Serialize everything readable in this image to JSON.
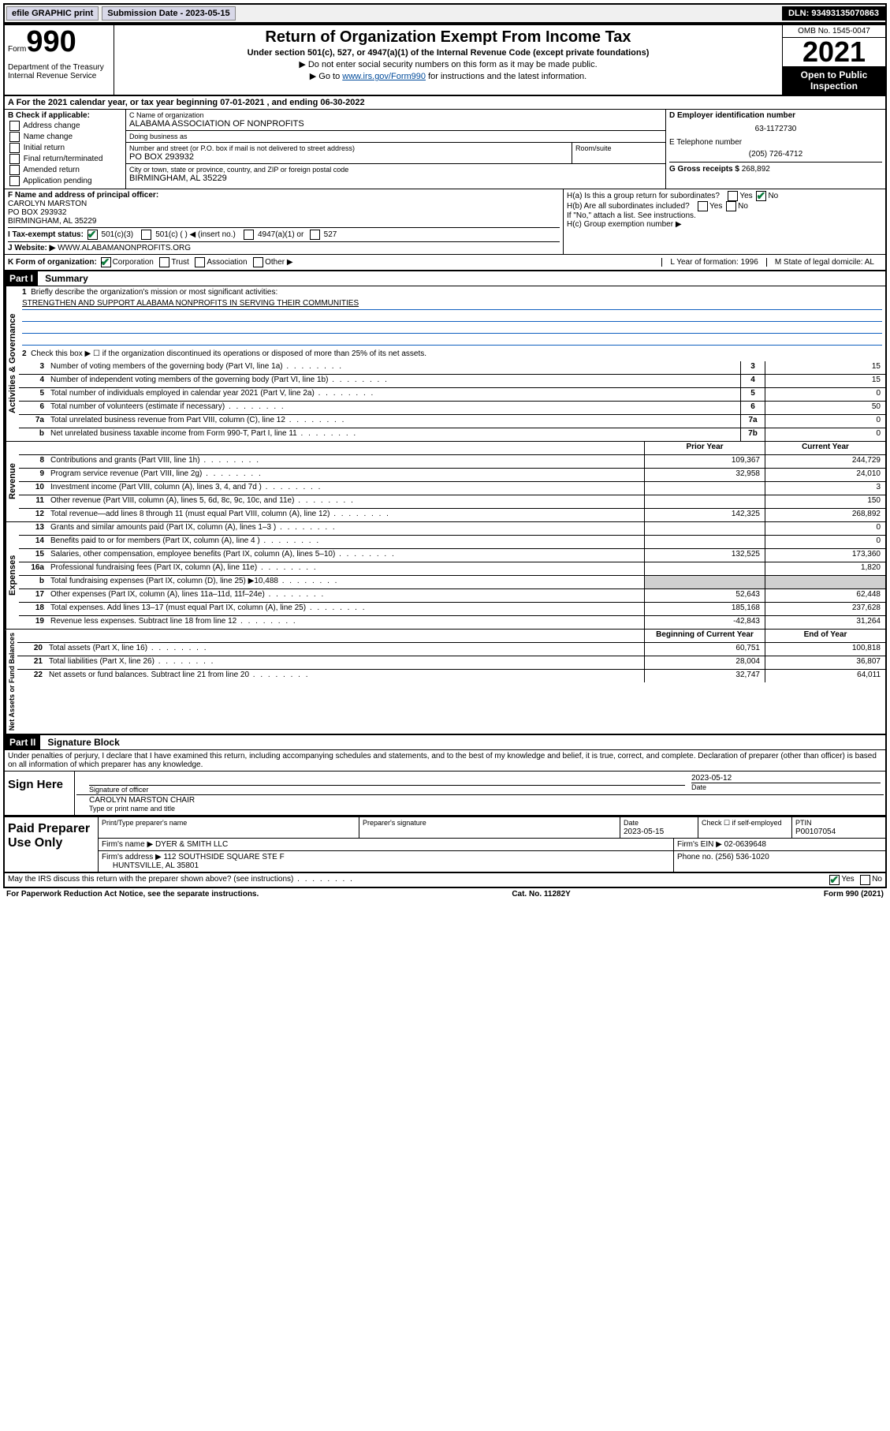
{
  "topbar": {
    "efile": "efile GRAPHIC print",
    "submission_label": "Submission Date - 2023-05-15",
    "dln": "DLN: 93493135070863"
  },
  "header": {
    "form_word": "Form",
    "form_num": "990",
    "dept": "Department of the Treasury\nInternal Revenue Service",
    "title": "Return of Organization Exempt From Income Tax",
    "sub": "Under section 501(c), 527, or 4947(a)(1) of the Internal Revenue Code (except private foundations)",
    "instr1": "▶ Do not enter social security numbers on this form as it may be made public.",
    "instr2_pre": "▶ Go to ",
    "instr2_link": "www.irs.gov/Form990",
    "instr2_post": " for instructions and the latest information.",
    "omb": "OMB No. 1545-0047",
    "year": "2021",
    "open": "Open to Public Inspection"
  },
  "row_a": "A For the 2021 calendar year, or tax year beginning 07-01-2021   , and ending 06-30-2022",
  "col_b": {
    "title": "B Check if applicable:",
    "opts": [
      "Address change",
      "Name change",
      "Initial return",
      "Final return/terminated",
      "Amended return",
      "Application pending"
    ]
  },
  "col_c": {
    "name_label": "C Name of organization",
    "name": "ALABAMA ASSOCIATION OF NONPROFITS",
    "dba_label": "Doing business as",
    "dba": "",
    "street_label": "Number and street (or P.O. box if mail is not delivered to street address)",
    "room_label": "Room/suite",
    "street": "PO BOX 293932",
    "city_label": "City or town, state or province, country, and ZIP or foreign postal code",
    "city": "BIRMINGHAM, AL  35229"
  },
  "col_d": {
    "ein_label": "D Employer identification number",
    "ein": "63-1172730",
    "phone_label": "E Telephone number",
    "phone": "(205) 726-4712",
    "gross_label": "G Gross receipts $",
    "gross": "268,892"
  },
  "col_f": {
    "label": "F Name and address of principal officer:",
    "name": "CAROLYN MARSTON",
    "addr1": "PO BOX 293932",
    "addr2": "BIRMINGHAM, AL  35229"
  },
  "col_h": {
    "ha": "H(a) Is this a group return for subordinates?",
    "hb": "H(b) Are all subordinates included?",
    "hb_note": "If \"No,\" attach a list. See instructions.",
    "hc": "H(c) Group exemption number ▶",
    "yes": "Yes",
    "no": "No"
  },
  "row_i": {
    "label": "I   Tax-exempt status:",
    "o1": "501(c)(3)",
    "o2": "501(c) (  ) ◀ (insert no.)",
    "o3": "4947(a)(1) or",
    "o4": "527"
  },
  "row_j": {
    "label": "J   Website: ▶",
    "value": "WWW.ALABAMANONPROFITS.ORG"
  },
  "row_k": {
    "label": "K Form of organization:",
    "o1": "Corporation",
    "o2": "Trust",
    "o3": "Association",
    "o4": "Other ▶",
    "l": "L Year of formation: 1996",
    "m": "M State of legal domicile: AL"
  },
  "part1": {
    "hdr": "Part I",
    "title": "Summary",
    "l1_label": "Briefly describe the organization's mission or most significant activities:",
    "l1_text": "STRENGTHEN AND SUPPORT ALABAMA NONPROFITS IN SERVING THEIR COMMUNITIES",
    "l2": "Check this box ▶ ☐  if the organization discontinued its operations or disposed of more than 25% of its net assets.",
    "lines_gov": [
      {
        "n": "3",
        "d": "Number of voting members of the governing body (Part VI, line 1a)",
        "box": "3",
        "v": "15"
      },
      {
        "n": "4",
        "d": "Number of independent voting members of the governing body (Part VI, line 1b)",
        "box": "4",
        "v": "15"
      },
      {
        "n": "5",
        "d": "Total number of individuals employed in calendar year 2021 (Part V, line 2a)",
        "box": "5",
        "v": "0"
      },
      {
        "n": "6",
        "d": "Total number of volunteers (estimate if necessary)",
        "box": "6",
        "v": "50"
      },
      {
        "n": "7a",
        "d": "Total unrelated business revenue from Part VIII, column (C), line 12",
        "box": "7a",
        "v": "0"
      },
      {
        "n": "b",
        "d": "Net unrelated business taxable income from Form 990-T, Part I, line 11",
        "box": "7b",
        "v": "0"
      }
    ],
    "col_prior": "Prior Year",
    "col_current": "Current Year",
    "lines_rev": [
      {
        "n": "8",
        "d": "Contributions and grants (Part VIII, line 1h)",
        "p": "109,367",
        "c": "244,729"
      },
      {
        "n": "9",
        "d": "Program service revenue (Part VIII, line 2g)",
        "p": "32,958",
        "c": "24,010"
      },
      {
        "n": "10",
        "d": "Investment income (Part VIII, column (A), lines 3, 4, and 7d )",
        "p": "",
        "c": "3"
      },
      {
        "n": "11",
        "d": "Other revenue (Part VIII, column (A), lines 5, 6d, 8c, 9c, 10c, and 11e)",
        "p": "",
        "c": "150"
      },
      {
        "n": "12",
        "d": "Total revenue—add lines 8 through 11 (must equal Part VIII, column (A), line 12)",
        "p": "142,325",
        "c": "268,892"
      }
    ],
    "lines_exp": [
      {
        "n": "13",
        "d": "Grants and similar amounts paid (Part IX, column (A), lines 1–3 )",
        "p": "",
        "c": "0"
      },
      {
        "n": "14",
        "d": "Benefits paid to or for members (Part IX, column (A), line 4 )",
        "p": "",
        "c": "0"
      },
      {
        "n": "15",
        "d": "Salaries, other compensation, employee benefits (Part IX, column (A), lines 5–10)",
        "p": "132,525",
        "c": "173,360"
      },
      {
        "n": "16a",
        "d": "Professional fundraising fees (Part IX, column (A), line 11e)",
        "p": "",
        "c": "1,820"
      },
      {
        "n": "b",
        "d": "Total fundraising expenses (Part IX, column (D), line 25) ▶10,488",
        "p": "grey",
        "c": "grey"
      },
      {
        "n": "17",
        "d": "Other expenses (Part IX, column (A), lines 11a–11d, 11f–24e)",
        "p": "52,643",
        "c": "62,448"
      },
      {
        "n": "18",
        "d": "Total expenses. Add lines 13–17 (must equal Part IX, column (A), line 25)",
        "p": "185,168",
        "c": "237,628"
      },
      {
        "n": "19",
        "d": "Revenue less expenses. Subtract line 18 from line 12",
        "p": "-42,843",
        "c": "31,264"
      }
    ],
    "col_begin": "Beginning of Current Year",
    "col_end": "End of Year",
    "lines_net": [
      {
        "n": "20",
        "d": "Total assets (Part X, line 16)",
        "p": "60,751",
        "c": "100,818"
      },
      {
        "n": "21",
        "d": "Total liabilities (Part X, line 26)",
        "p": "28,004",
        "c": "36,807"
      },
      {
        "n": "22",
        "d": "Net assets or fund balances. Subtract line 21 from line 20",
        "p": "32,747",
        "c": "64,011"
      }
    ],
    "vl_gov": "Activities & Governance",
    "vl_rev": "Revenue",
    "vl_exp": "Expenses",
    "vl_net": "Net Assets or Fund Balances"
  },
  "part2": {
    "hdr": "Part II",
    "title": "Signature Block",
    "decl": "Under penalties of perjury, I declare that I have examined this return, including accompanying schedules and statements, and to the best of my knowledge and belief, it is true, correct, and complete. Declaration of preparer (other than officer) is based on all information of which preparer has any knowledge.",
    "sign_here": "Sign Here",
    "sig_officer": "Signature of officer",
    "sig_date": "Date",
    "sig_date_v": "2023-05-12",
    "sig_name": "CAROLYN MARSTON CHAIR",
    "sig_name_label": "Type or print name and title"
  },
  "paid": {
    "label": "Paid Preparer Use Only",
    "h1": "Print/Type preparer's name",
    "h2": "Preparer's signature",
    "h3": "Date",
    "h3v": "2023-05-15",
    "h4": "Check ☐ if self-employed",
    "h5": "PTIN",
    "h5v": "P00107054",
    "firm_name_l": "Firm's name   ▶",
    "firm_name": "DYER & SMITH LLC",
    "firm_ein_l": "Firm's EIN ▶",
    "firm_ein": "02-0639648",
    "firm_addr_l": "Firm's address ▶",
    "firm_addr": "112 SOUTHSIDE SQUARE STE F",
    "firm_addr2": "HUNTSVILLE, AL  35801",
    "phone_l": "Phone no.",
    "phone": "(256) 536-1020"
  },
  "discuss": {
    "q": "May the IRS discuss this return with the preparer shown above? (see instructions)",
    "yes": "Yes",
    "no": "No"
  },
  "footer": {
    "l": "For Paperwork Reduction Act Notice, see the separate instructions.",
    "c": "Cat. No. 11282Y",
    "r": "Form 990 (2021)"
  }
}
